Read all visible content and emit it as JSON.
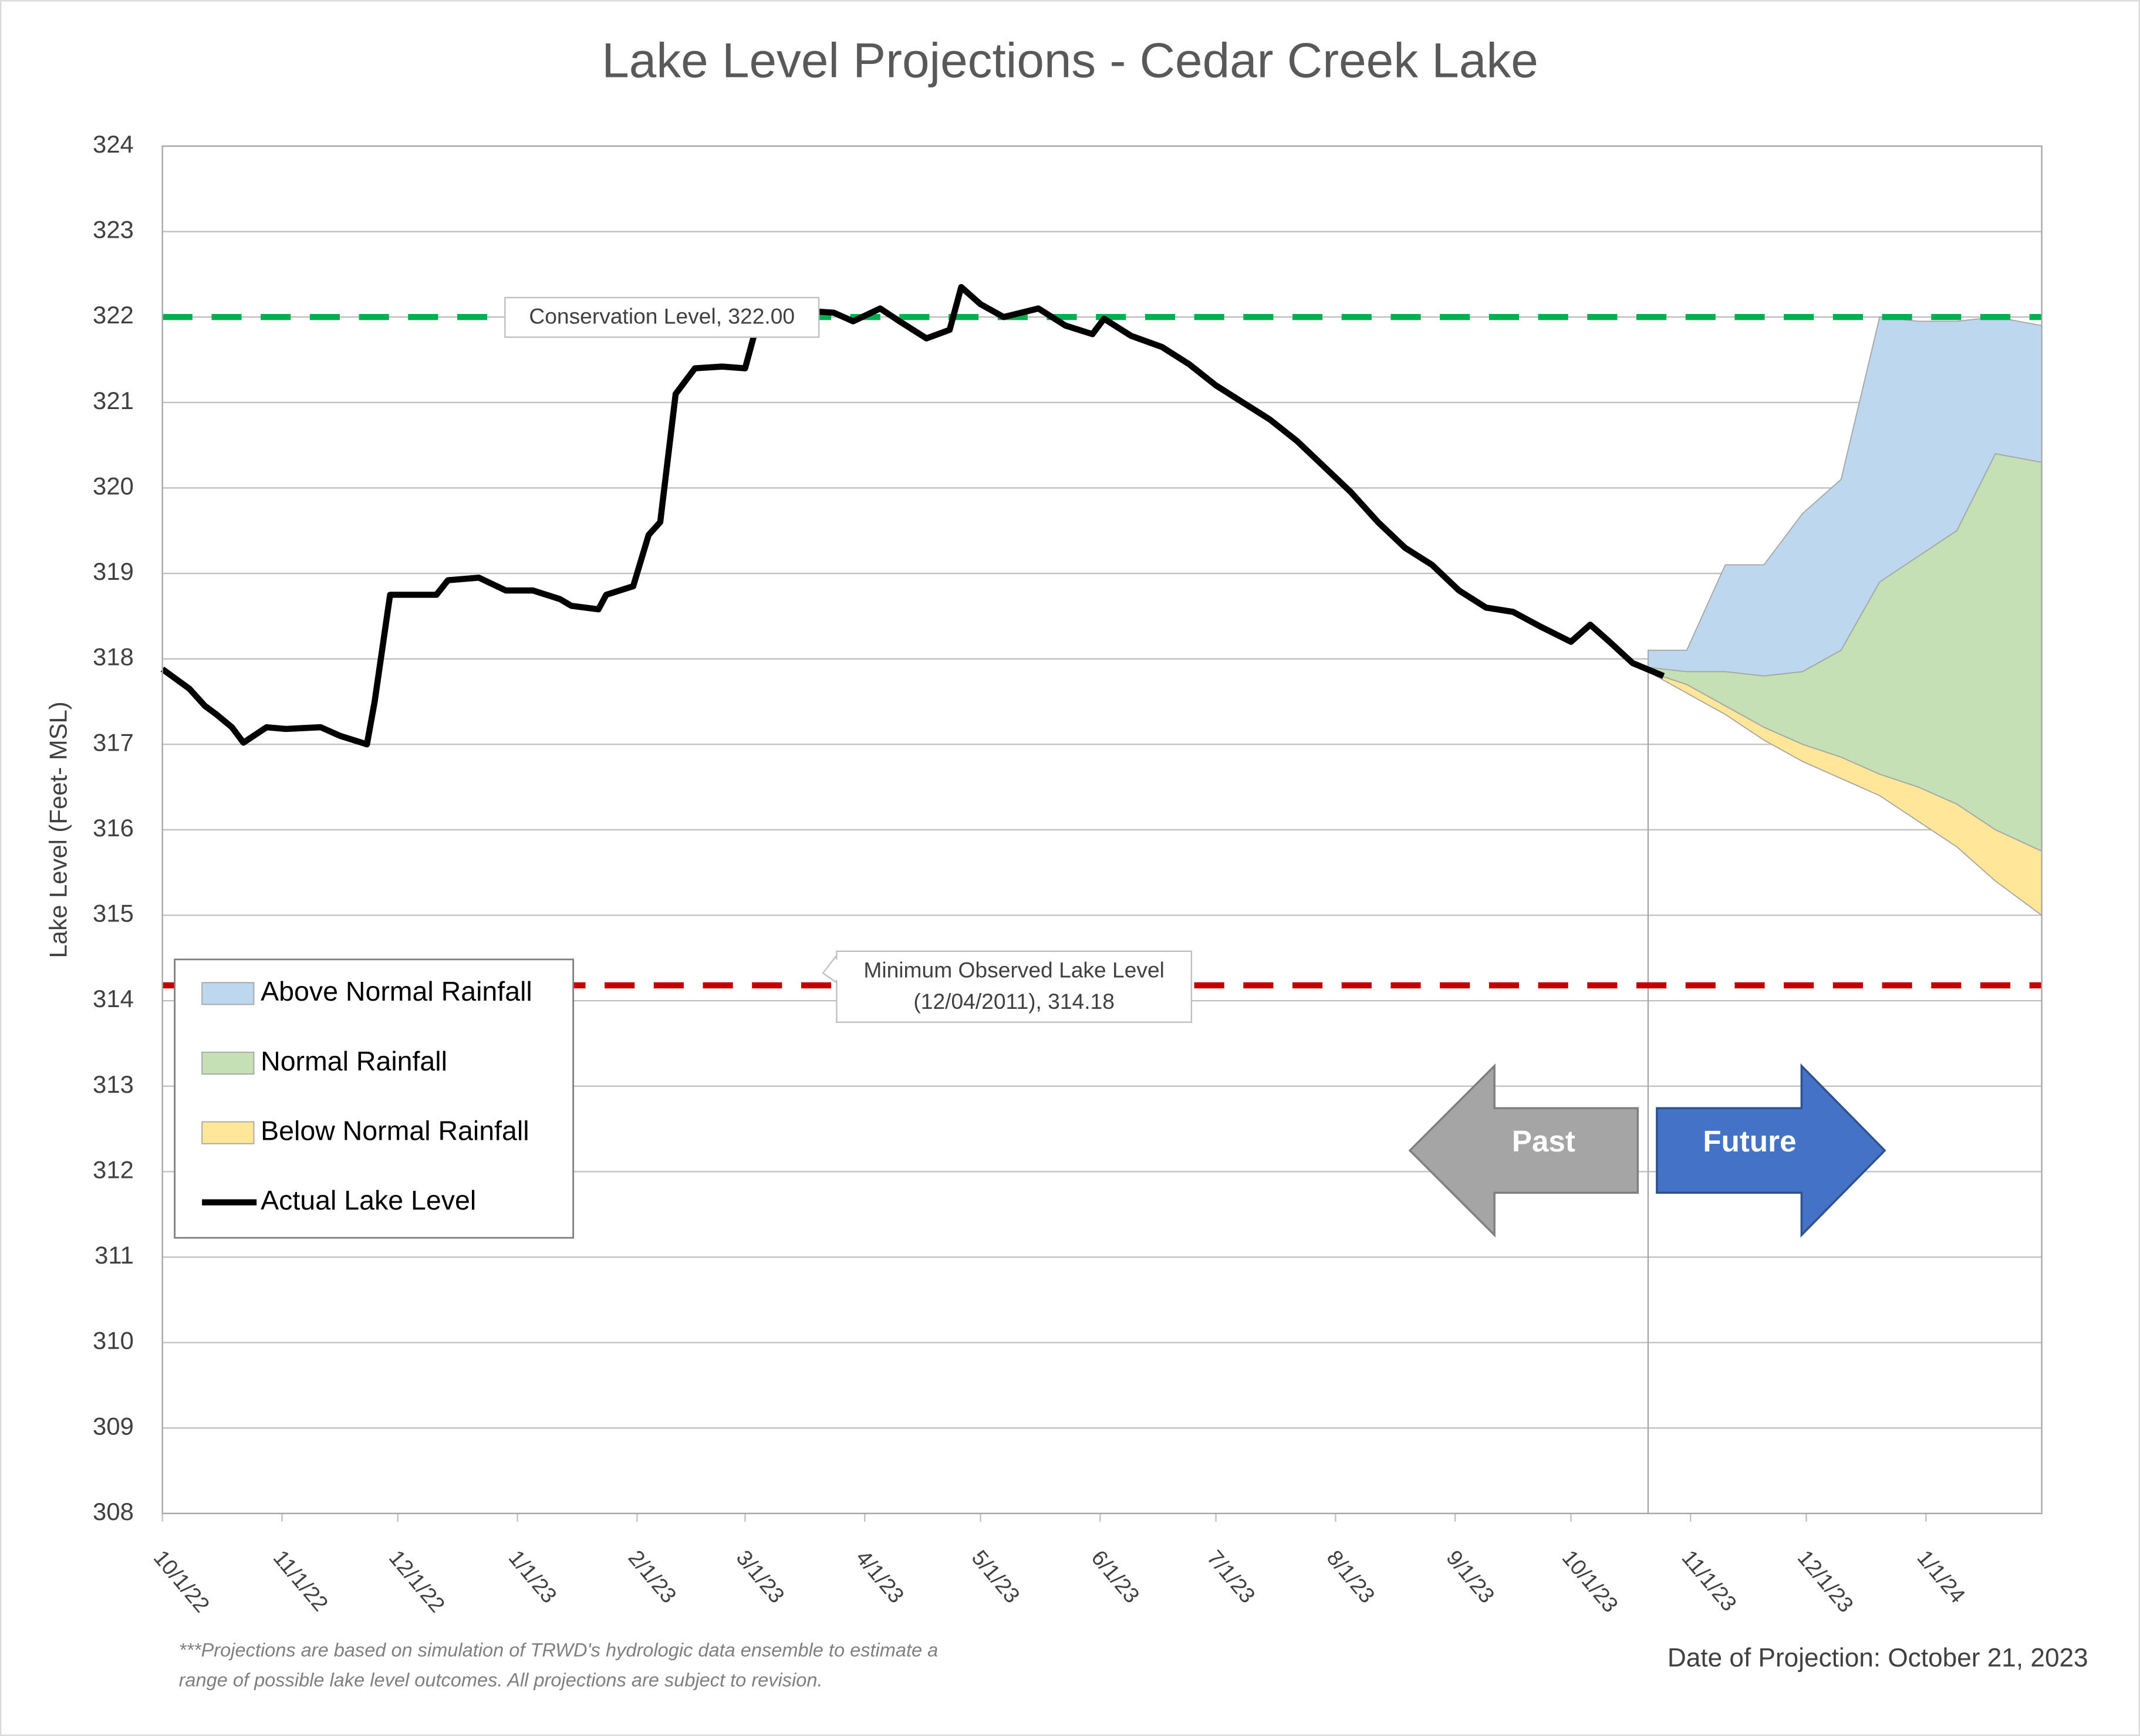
{
  "chart_data": {
    "type": "line",
    "title": "Lake Level Projections - Cedar Creek Lake",
    "y_label": "Lake Level (Feet- MSL)",
    "xlim": [
      "2022-10-01",
      "2024-01-31"
    ],
    "xticks": [
      {
        "value": "2022-10-01",
        "label": "10/1/22"
      },
      {
        "value": "2022-11-01",
        "label": "11/1/22"
      },
      {
        "value": "2022-12-01",
        "label": "12/1/22"
      },
      {
        "value": "2023-01-01",
        "label": "1/1/23"
      },
      {
        "value": "2023-02-01",
        "label": "2/1/23"
      },
      {
        "value": "2023-03-01",
        "label": "3/1/23"
      },
      {
        "value": "2023-04-01",
        "label": "4/1/23"
      },
      {
        "value": "2023-05-01",
        "label": "5/1/23"
      },
      {
        "value": "2023-06-01",
        "label": "6/1/23"
      },
      {
        "value": "2023-07-01",
        "label": "7/1/23"
      },
      {
        "value": "2023-08-01",
        "label": "8/1/23"
      },
      {
        "value": "2023-09-01",
        "label": "9/1/23"
      },
      {
        "value": "2023-10-01",
        "label": "10/1/23"
      },
      {
        "value": "2023-11-01",
        "label": "11/1/23"
      },
      {
        "value": "2023-12-01",
        "label": "12/1/23"
      },
      {
        "value": "2024-01-01",
        "label": "1/1/24"
      }
    ],
    "ylim": [
      308,
      324
    ],
    "yticks": [
      308,
      309,
      310,
      311,
      312,
      313,
      314,
      315,
      316,
      317,
      318,
      319,
      320,
      321,
      322,
      323,
      324
    ],
    "grid": true,
    "projection_date": "2023-10-21",
    "projection_x": [
      "2023-10-21",
      "2023-10-31",
      "2023-11-10",
      "2023-11-20",
      "2023-11-30",
      "2023-12-10",
      "2023-12-20",
      "2023-12-30",
      "2024-01-09",
      "2024-01-19",
      "2024-01-31"
    ],
    "series": [
      {
        "name": "Above Normal Rainfall",
        "color": "#bdd7ee",
        "low": [
          317.9,
          317.85,
          317.85,
          317.8,
          317.85,
          318.1,
          318.9,
          319.2,
          319.5,
          320.4,
          320.3
        ],
        "high": [
          318.1,
          318.1,
          319.1,
          319.1,
          319.7,
          320.1,
          322.0,
          321.95,
          321.95,
          322.0,
          321.9
        ]
      },
      {
        "name": "Normal Rainfall",
        "color": "#c5e0b4",
        "low": [
          317.85,
          317.7,
          317.45,
          317.2,
          317.0,
          316.85,
          316.65,
          316.5,
          316.3,
          316.0,
          315.75
        ],
        "high": [
          317.9,
          317.85,
          317.85,
          317.8,
          317.85,
          318.1,
          318.9,
          319.2,
          319.5,
          320.4,
          320.3
        ]
      },
      {
        "name": "Below Normal Rainfall",
        "color": "#ffe699",
        "low": [
          317.85,
          317.6,
          317.35,
          317.05,
          316.8,
          316.6,
          316.4,
          316.1,
          315.8,
          315.4,
          315.0
        ],
        "high": [
          317.85,
          317.7,
          317.45,
          317.2,
          317.0,
          316.85,
          316.65,
          316.5,
          316.3,
          316.0,
          315.75
        ]
      }
    ],
    "actual": {
      "name": "Actual Lake Level",
      "color": "#000000",
      "x": [
        "2022-10-01",
        "2022-10-08",
        "2022-10-12",
        "2022-10-15",
        "2022-10-19",
        "2022-10-22",
        "2022-10-28",
        "2022-11-02",
        "2022-11-11",
        "2022-11-16",
        "2022-11-23",
        "2022-11-25",
        "2022-11-29",
        "2022-12-04",
        "2022-12-11",
        "2022-12-14",
        "2022-12-22",
        "2022-12-29",
        "2023-01-05",
        "2023-01-12",
        "2023-01-15",
        "2023-01-22",
        "2023-01-24",
        "2023-01-31",
        "2023-02-04",
        "2023-02-07",
        "2023-02-11",
        "2023-02-16",
        "2023-02-23",
        "2023-03-01",
        "2023-03-04",
        "2023-03-08",
        "2023-03-24",
        "2023-03-29",
        "2023-04-05",
        "2023-04-10",
        "2023-04-17",
        "2023-04-23",
        "2023-04-26",
        "2023-05-01",
        "2023-05-07",
        "2023-05-16",
        "2023-05-23",
        "2023-05-30",
        "2023-06-02",
        "2023-06-09",
        "2023-06-17",
        "2023-06-24",
        "2023-07-01",
        "2023-07-08",
        "2023-07-15",
        "2023-07-22",
        "2023-07-29",
        "2023-08-05",
        "2023-08-12",
        "2023-08-19",
        "2023-08-26",
        "2023-09-02",
        "2023-09-09",
        "2023-09-16",
        "2023-09-23",
        "2023-10-01",
        "2023-10-06",
        "2023-10-11",
        "2023-10-17",
        "2023-10-25"
      ],
      "values": [
        317.88,
        317.65,
        317.45,
        317.35,
        317.2,
        317.02,
        317.2,
        317.18,
        317.2,
        317.1,
        317.0,
        317.5,
        318.75,
        318.75,
        318.75,
        318.92,
        318.95,
        318.8,
        318.8,
        318.7,
        318.62,
        318.58,
        318.75,
        318.85,
        319.45,
        319.6,
        321.1,
        321.4,
        321.42,
        321.4,
        321.9,
        322.1,
        322.05,
        321.95,
        322.1,
        321.95,
        321.75,
        321.85,
        322.35,
        322.15,
        322.0,
        322.1,
        321.9,
        321.8,
        321.98,
        321.78,
        321.65,
        321.45,
        321.2,
        321.0,
        320.8,
        320.55,
        320.25,
        319.95,
        319.6,
        319.3,
        319.1,
        318.8,
        318.6,
        318.55,
        318.38,
        318.2,
        318.4,
        318.2,
        317.95,
        317.8
      ]
    },
    "reference_lines": [
      {
        "value": 322,
        "color": "#00b050",
        "label": [
          "Conservation Level, 322.00"
        ]
      },
      {
        "value": 314.18,
        "color": "#c00000",
        "label": [
          "Minimum Observed Lake Level",
          "(12/04/2011), 314.18"
        ]
      }
    ],
    "arrows": {
      "past": "Past",
      "future": "Future"
    },
    "footnote": [
      "***Projections are based on simulation of TRWD's hydrologic data ensemble to estimate a",
      "range of possible lake level outcomes.  All projections are subject to revision."
    ],
    "date_note": "Date of Projection: October 21, 2023"
  }
}
